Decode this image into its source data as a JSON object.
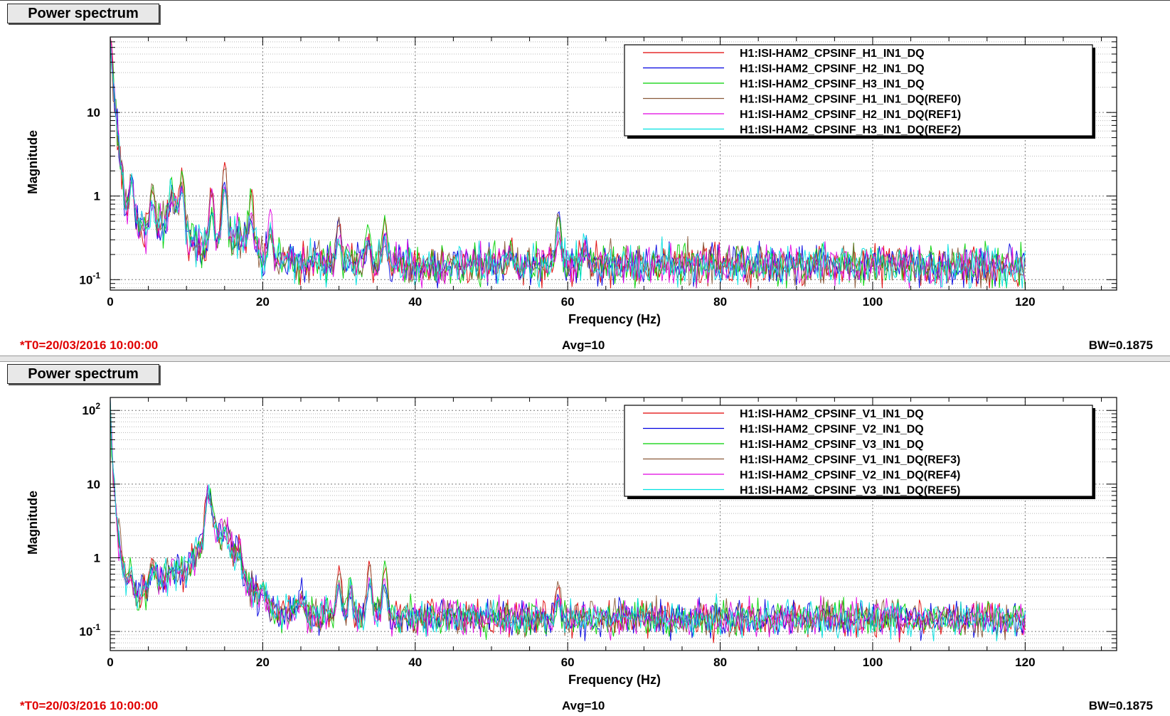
{
  "panels": [
    {
      "title": "Power spectrum",
      "footer": {
        "t0": "*T0=20/03/2016 10:00:00",
        "avg": "Avg=10",
        "bw": "BW=0.1875"
      },
      "chart_data": {
        "type": "line",
        "xlabel": "Frequency (Hz)",
        "ylabel": "Magnitude",
        "xlim": [
          0,
          132
        ],
        "ylim": [
          0.075,
          80
        ],
        "yscale": "log",
        "grid": true,
        "legend_position": "top-right",
        "x_ticks": [
          "0",
          "20",
          "40",
          "60",
          "80",
          "100",
          "120"
        ],
        "y_ticks": [
          {
            "value": 0.1,
            "base": "10",
            "exp": "-1"
          },
          {
            "value": 1,
            "base": "1",
            "exp": ""
          },
          {
            "value": 10,
            "base": "10",
            "exp": ""
          }
        ],
        "series": [
          {
            "name": "H1:ISI-HAM2_CPSINF_H1_IN1_DQ",
            "color": "#e00000"
          },
          {
            "name": "H1:ISI-HAM2_CPSINF_H2_IN1_DQ",
            "color": "#0000e0"
          },
          {
            "name": "H1:ISI-HAM2_CPSINF_H3_IN1_DQ",
            "color": "#00d000"
          },
          {
            "name": "H1:ISI-HAM2_CPSINF_H1_IN1_DQ(REF0)",
            "color": "#8a5a3a"
          },
          {
            "name": "H1:ISI-HAM2_CPSINF_H2_IN1_DQ(REF1)",
            "color": "#e000e0"
          },
          {
            "name": "H1:ISI-HAM2_CPSINF_H3_IN1_DQ(REF2)",
            "color": "#00e0e0"
          }
        ],
        "profile": [
          [
            0.0,
            70
          ],
          [
            0.3,
            30
          ],
          [
            0.8,
            8
          ],
          [
            1.5,
            2
          ],
          [
            2.2,
            0.6
          ],
          [
            3,
            0.45
          ],
          [
            5,
            0.42
          ],
          [
            7,
            0.5
          ],
          [
            9,
            0.6
          ],
          [
            10,
            0.35
          ],
          [
            12,
            0.22
          ],
          [
            15,
            0.32
          ],
          [
            18,
            0.3
          ],
          [
            20,
            0.17
          ],
          [
            22,
            0.16
          ],
          [
            30,
            0.16
          ],
          [
            40,
            0.15
          ],
          [
            60,
            0.155
          ],
          [
            80,
            0.15
          ],
          [
            100,
            0.15
          ],
          [
            120,
            0.14
          ]
        ],
        "peaks": [
          {
            "f": 2.8,
            "amp": 1.7,
            "s": [
              0,
              1,
              2,
              3,
              4,
              5
            ]
          },
          {
            "f": 5.5,
            "amp": 1.3,
            "s": [
              0,
              2,
              3
            ]
          },
          {
            "f": 8.0,
            "amp": 1.6,
            "s": [
              2,
              5
            ]
          },
          {
            "f": 9.4,
            "amp": 2.2,
            "s": [
              2,
              0
            ]
          },
          {
            "f": 13.3,
            "amp": 1.2,
            "s": [
              0,
              3,
              4
            ]
          },
          {
            "f": 15.0,
            "amp": 2.6,
            "s": [
              0,
              3
            ]
          },
          {
            "f": 18.5,
            "amp": 1.1,
            "s": [
              0,
              2
            ]
          },
          {
            "f": 21.0,
            "amp": 0.7,
            "s": [
              4
            ]
          },
          {
            "f": 30.0,
            "amp": 0.55,
            "s": [
              0,
              1,
              3
            ]
          },
          {
            "f": 33.8,
            "amp": 0.5,
            "s": [
              2
            ]
          },
          {
            "f": 36.0,
            "amp": 0.55,
            "s": [
              2,
              0
            ]
          },
          {
            "f": 52.5,
            "amp": 0.3,
            "s": [
              0,
              2
            ]
          },
          {
            "f": 58.8,
            "amp": 0.62,
            "s": [
              2,
              1,
              3
            ]
          },
          {
            "f": 62.3,
            "amp": 0.35,
            "s": [
              5
            ]
          }
        ]
      }
    },
    {
      "title": "Power spectrum",
      "footer": {
        "t0": "*T0=20/03/2016 10:00:00",
        "avg": "Avg=10",
        "bw": "BW=0.1875"
      },
      "chart_data": {
        "type": "line",
        "xlabel": "Frequency (Hz)",
        "ylabel": "Magnitude",
        "xlim": [
          0,
          132
        ],
        "ylim": [
          0.055,
          150
        ],
        "yscale": "log",
        "grid": true,
        "legend_position": "top-right",
        "x_ticks": [
          "0",
          "20",
          "40",
          "60",
          "80",
          "100",
          "120"
        ],
        "y_ticks": [
          {
            "value": 0.1,
            "base": "10",
            "exp": "-1"
          },
          {
            "value": 1,
            "base": "1",
            "exp": ""
          },
          {
            "value": 10,
            "base": "10",
            "exp": ""
          },
          {
            "value": 100,
            "base": "10",
            "exp": "2"
          }
        ],
        "series": [
          {
            "name": "H1:ISI-HAM2_CPSINF_V1_IN1_DQ",
            "color": "#e00000"
          },
          {
            "name": "H1:ISI-HAM2_CPSINF_V2_IN1_DQ",
            "color": "#0000e0"
          },
          {
            "name": "H1:ISI-HAM2_CPSINF_V3_IN1_DQ",
            "color": "#00d000"
          },
          {
            "name": "H1:ISI-HAM2_CPSINF_V1_IN1_DQ(REF3)",
            "color": "#8a5a3a"
          },
          {
            "name": "H1:ISI-HAM2_CPSINF_V2_IN1_DQ(REF4)",
            "color": "#e000e0"
          },
          {
            "name": "H1:ISI-HAM2_CPSINF_V3_IN1_DQ(REF5)",
            "color": "#00e0e0"
          }
        ],
        "profile": [
          [
            0.0,
            120
          ],
          [
            0.3,
            20
          ],
          [
            0.8,
            4
          ],
          [
            1.5,
            0.8
          ],
          [
            2.5,
            0.35
          ],
          [
            4,
            0.3
          ],
          [
            6,
            0.5
          ],
          [
            8,
            0.65
          ],
          [
            10,
            0.7
          ],
          [
            12,
            1.6
          ],
          [
            13,
            6.5
          ],
          [
            14,
            2.2
          ],
          [
            16,
            1.4
          ],
          [
            18,
            0.45
          ],
          [
            20,
            0.25
          ],
          [
            22,
            0.18
          ],
          [
            30,
            0.16
          ],
          [
            40,
            0.155
          ],
          [
            60,
            0.15
          ],
          [
            80,
            0.15
          ],
          [
            100,
            0.15
          ],
          [
            120,
            0.14
          ]
        ],
        "peaks": [
          {
            "f": 2.7,
            "amp": 0.9,
            "s": [
              2,
              5
            ]
          },
          {
            "f": 5.5,
            "amp": 1.0,
            "s": [
              0,
              3
            ]
          },
          {
            "f": 12.9,
            "amp": 8.0,
            "s": [
              0,
              1,
              2,
              3,
              4,
              5
            ]
          },
          {
            "f": 15.2,
            "amp": 2.8,
            "s": [
              1,
              3
            ]
          },
          {
            "f": 16.9,
            "amp": 1.6,
            "s": [
              0,
              4
            ]
          },
          {
            "f": 20.0,
            "amp": 0.5,
            "s": [
              0,
              2
            ]
          },
          {
            "f": 25.0,
            "amp": 0.45,
            "s": [
              1
            ]
          },
          {
            "f": 30.0,
            "amp": 0.75,
            "s": [
              0,
              3
            ]
          },
          {
            "f": 31.5,
            "amp": 0.6,
            "s": [
              2
            ]
          },
          {
            "f": 34.0,
            "amp": 0.95,
            "s": [
              3,
              0
            ]
          },
          {
            "f": 36.0,
            "amp": 0.9,
            "s": [
              0,
              2
            ]
          },
          {
            "f": 58.8,
            "amp": 0.45,
            "s": [
              0,
              3
            ]
          }
        ]
      }
    }
  ]
}
